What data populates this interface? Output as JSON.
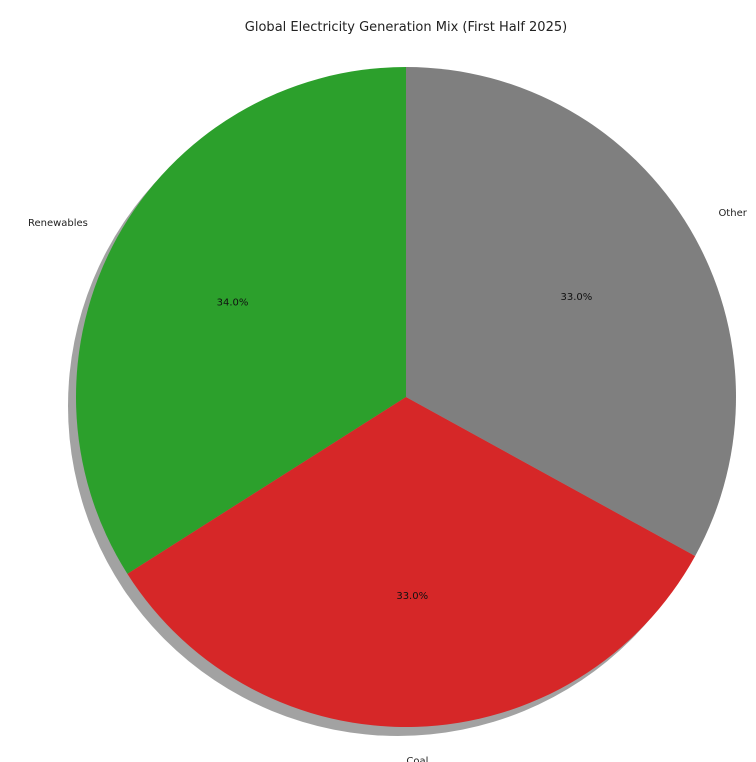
{
  "chart_data": {
    "type": "pie",
    "title": "Global Electricity Generation Mix (First Half 2025)",
    "start_angle_deg": 90,
    "direction": "counterclockwise",
    "shadow": true,
    "slices": [
      {
        "label": "Renewables",
        "value": 34.0,
        "pct_label": "34.0%",
        "color": "#2ca02c"
      },
      {
        "label": "Coal",
        "value": 33.0,
        "pct_label": "33.0%",
        "color": "#d62728"
      },
      {
        "label": "Other",
        "value": 33.0,
        "pct_label": "33.0%",
        "color": "#7f7f7f"
      }
    ]
  }
}
